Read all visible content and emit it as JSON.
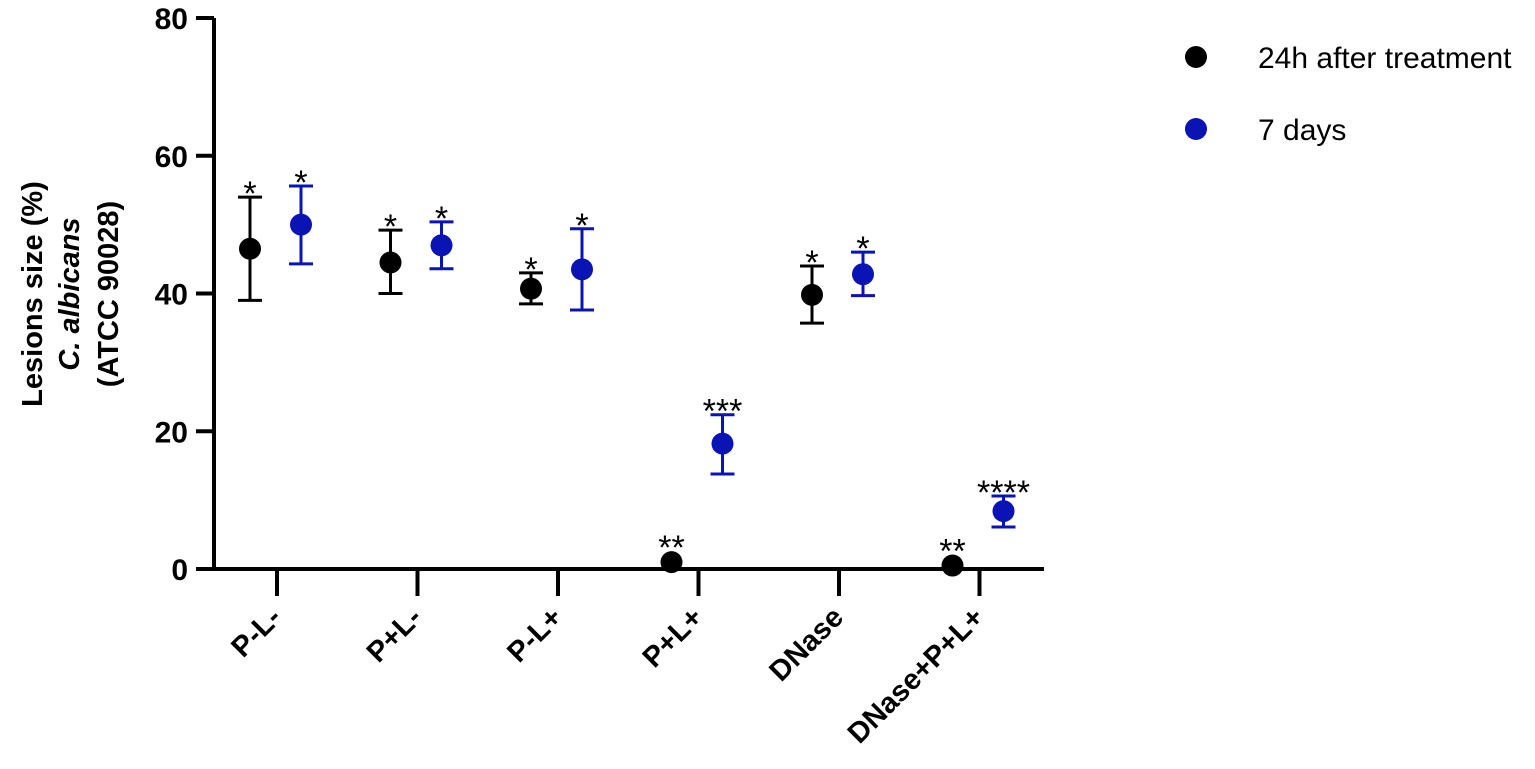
{
  "chart_data": {
    "type": "scatter",
    "categories": [
      "P-L-",
      "P+L-",
      "P-L+",
      "P+L+",
      "DNase",
      "DNase+P+L+"
    ],
    "ylabel_lines": [
      "Lesions size (%)",
      "C. albicans",
      "(ATCC 90028)"
    ],
    "xlabel": "",
    "ylim": [
      0,
      80
    ],
    "yticks": [
      0,
      20,
      40,
      60,
      80
    ],
    "legend_placement": "top-right",
    "grid": false,
    "series": [
      {
        "name": "24h after treatment",
        "color": "#000000",
        "values": [
          46.5,
          44.5,
          40.7,
          1.0,
          39.8,
          0.5
        ],
        "err_low": [
          39.0,
          40.0,
          38.5,
          1.0,
          35.7,
          0.5
        ],
        "err_high": [
          54.0,
          49.2,
          43.0,
          1.0,
          44.0,
          0.5
        ],
        "sig": [
          "*",
          "*",
          "*",
          "**",
          "*",
          "**"
        ]
      },
      {
        "name": "7 days",
        "color": "#0a14b4",
        "values": [
          50.0,
          47.0,
          43.5,
          18.2,
          42.8,
          8.4
        ],
        "err_low": [
          44.3,
          43.6,
          37.6,
          13.8,
          39.7,
          6.1
        ],
        "err_high": [
          55.6,
          50.4,
          49.4,
          22.4,
          46.0,
          10.6
        ],
        "sig": [
          "*",
          "*",
          "*",
          "***",
          "*",
          "****"
        ]
      }
    ]
  }
}
